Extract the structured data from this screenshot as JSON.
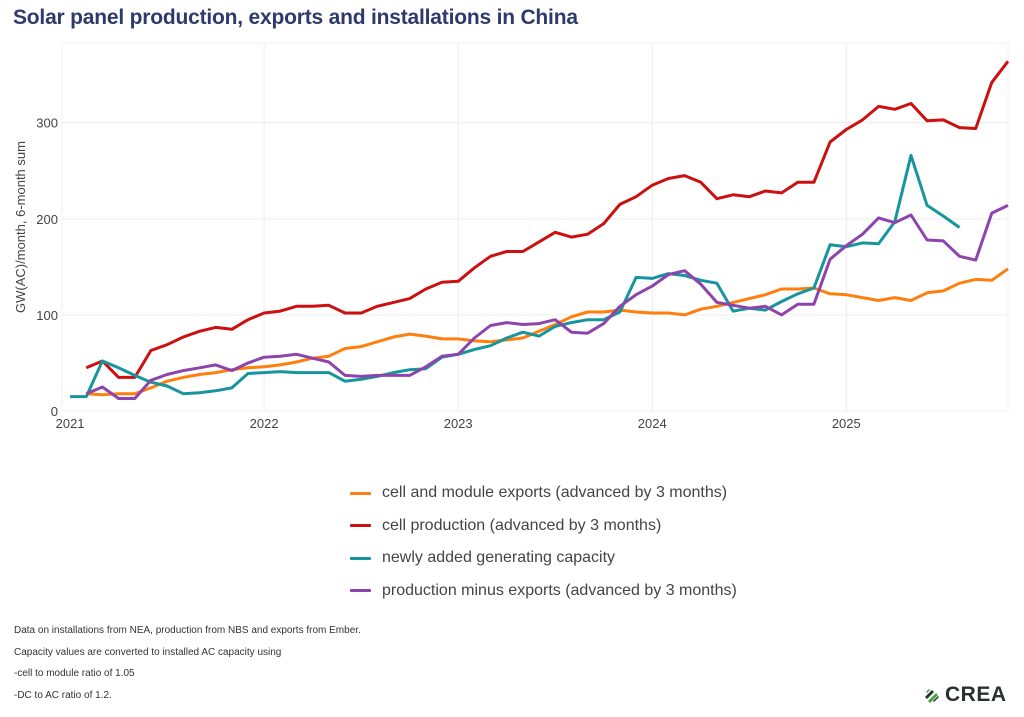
{
  "chart_data": {
    "type": "line",
    "title": "Solar panel production, exports and installations in China",
    "xlabel": "",
    "ylabel": "GW(AC)/month, 6-month sum",
    "x_start": "2021-01",
    "x_unit": "month",
    "xlim_months": [
      -0.5,
      58.0
    ],
    "ylim": [
      0,
      383
    ],
    "x_ticks": [
      {
        "label": "2021",
        "month_index": 0
      },
      {
        "label": "2022",
        "month_index": 12
      },
      {
        "label": "2023",
        "month_index": 24
      },
      {
        "label": "2024",
        "month_index": 36
      },
      {
        "label": "2025",
        "month_index": 48
      }
    ],
    "y_ticks": [
      0,
      100,
      200,
      300
    ],
    "grid": true,
    "legend_position": "bottom-center",
    "series": [
      {
        "name": "cell and module exports (advanced by 3 months)",
        "color": "#ff7f0e",
        "start": "2021-02",
        "values": [
          18,
          17,
          18,
          18,
          24,
          31,
          35,
          38,
          40,
          43,
          45,
          46,
          48,
          51,
          55,
          57,
          65,
          67,
          72,
          77,
          80,
          78,
          75,
          75,
          73,
          72,
          74,
          76,
          83,
          90,
          98,
          103,
          103,
          105,
          103,
          102,
          102,
          100,
          106,
          109,
          113,
          117,
          121,
          127,
          127,
          128,
          122,
          121,
          118,
          115,
          118,
          115,
          123,
          125,
          133,
          137,
          136,
          148
        ]
      },
      {
        "name": "cell production (advanced by 3 months)",
        "color": "#cc1010",
        "start": "2021-02",
        "values": [
          45,
          52,
          35,
          35,
          63,
          69,
          77,
          83,
          87,
          85,
          95,
          102,
          104,
          109,
          109,
          110,
          102,
          102,
          109,
          113,
          117,
          127,
          134,
          135,
          149,
          161,
          166,
          166,
          176,
          186,
          181,
          184,
          195,
          215,
          223,
          235,
          242,
          245,
          238,
          221,
          225,
          223,
          229,
          227,
          238,
          238,
          280,
          293,
          303,
          317,
          314,
          320,
          302,
          303,
          295,
          294,
          342,
          364
        ]
      },
      {
        "name": "newly added generating capacity",
        "color": "#17959e",
        "start": "2021-01",
        "values": [
          15,
          15,
          52,
          45,
          37,
          30,
          26,
          18,
          19,
          21,
          24,
          39,
          40,
          41,
          40,
          40,
          40,
          31,
          33,
          36,
          40,
          43,
          44,
          56,
          59,
          64,
          68,
          76,
          82,
          78,
          88,
          92,
          95,
          95,
          103,
          139,
          138,
          143,
          141,
          136,
          133,
          104,
          107,
          105,
          114,
          122,
          128,
          173,
          171,
          175,
          174,
          197,
          266,
          214,
          203,
          191
        ]
      },
      {
        "name": "production minus exports (advanced by 3 months)",
        "color": "#8e44ad",
        "start": "2021-02",
        "values": [
          18,
          25,
          13,
          13,
          32,
          38,
          42,
          45,
          48,
          42,
          50,
          56,
          57,
          59,
          55,
          51,
          37,
          36,
          37,
          37,
          37,
          46,
          57,
          59,
          76,
          89,
          92,
          90,
          91,
          95,
          82,
          81,
          91,
          109,
          121,
          130,
          142,
          146,
          132,
          113,
          110,
          107,
          109,
          100,
          111,
          111,
          158,
          172,
          184,
          201,
          196,
          204,
          178,
          177,
          161,
          157,
          206,
          214
        ]
      }
    ]
  },
  "notes": [
    "Data on installations from NEA, production from NBS and exports from Ember.",
    "Capacity values are converted to installed AC capacity using",
    "-cell to module ratio of 1.05",
    "-DC to AC ratio of 1.2."
  ],
  "logo": {
    "text": "CREA",
    "icon": "crea-leaf-icon",
    "colors": [
      "#2b2f2e",
      "#3aaa35"
    ]
  }
}
